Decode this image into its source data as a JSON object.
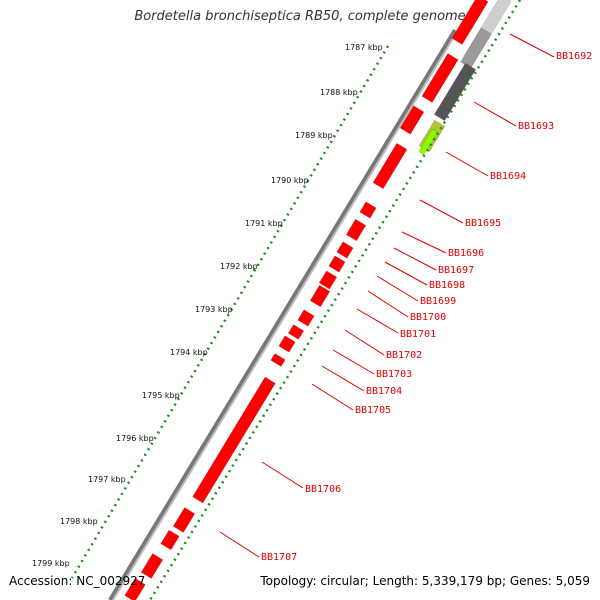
{
  "title": "Bordetella bronchiseptica RB50, complete genome",
  "accession": "Accession: NC_002927",
  "topology": "Topology: circular; Length: 5,339,179 bp; Genes: 5,059",
  "kbp_labels": [
    "1787 kbp",
    "1788 kbp",
    "1789 kbp",
    "1790 kbp",
    "1791 kbp",
    "1792 kbp",
    "1793 kbp",
    "1794 kbp",
    "1795 kbp",
    "1796 kbp",
    "1797 kbp",
    "1798 kbp",
    "1799 kbp"
  ],
  "gene_labels": [
    "BB1692",
    "BB1693",
    "BB1694",
    "BB1695",
    "BB1696",
    "BB1697",
    "BB1698",
    "BB1699",
    "BB1700",
    "BB1701",
    "BB1702",
    "BB1703",
    "BB1704",
    "BB1705",
    "BB1706",
    "BB1707"
  ],
  "colors": {
    "forward_gene": "#ff0000",
    "gray_gene": "#9a9a9a",
    "dark_gene": "#555555",
    "yellow_gene": "#b5c236",
    "lime_gene": "#88ff00",
    "tick_green": "#1e8c1e",
    "label_red": "#e00000"
  }
}
